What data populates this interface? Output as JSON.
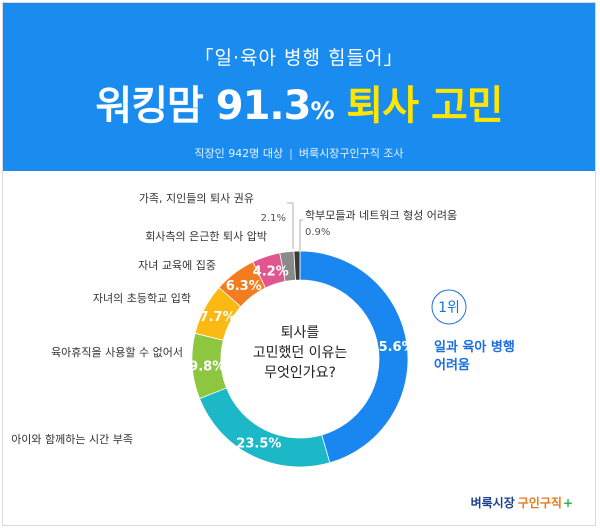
{
  "header": {
    "subtitle": "「일·육아 병행 힘들어」",
    "headline_prefix": "워킹맘 91.3",
    "headline_unit": "%",
    "headline_highlight": " 퇴사 고민",
    "survey_target": "직장인 942명 대상",
    "survey_source": "벼룩시장구인구직 조사"
  },
  "colors": {
    "header_bg": "#1a8cf0",
    "highlight": "#ffe600"
  },
  "chart_data": {
    "type": "pie",
    "style": "donut",
    "center_text": [
      "퇴사를",
      "고민했던 이유는",
      "무엇인가요?"
    ],
    "unit": "%",
    "categories": [
      "일과 육아 병행 어려움",
      "아이와 함께하는 시간 부족",
      "육아휴직을 사용할 수 없어서",
      "자녀의 초등학교 입학",
      "자녀 교육에 집중",
      "회사측의 은근한 퇴사 압박",
      "가족, 지인들의 퇴사 권유",
      "학부모들과 네트워크 형성 어려움"
    ],
    "values": [
      45.6,
      23.5,
      9.8,
      7.7,
      6.3,
      4.2,
      2.1,
      0.9
    ],
    "colors": [
      "#1a86f0",
      "#1cb8c8",
      "#8dc63f",
      "#fcb813",
      "#f47c20",
      "#e0578f",
      "#8a8a8a",
      "#3a3a3a"
    ],
    "top_rank": {
      "label": "1위",
      "reason_lines": [
        "일과 육아 병행",
        "어려움"
      ]
    }
  },
  "logo": {
    "part1": "벼룩시장",
    "part2": "구인구직",
    "plus": "+"
  }
}
